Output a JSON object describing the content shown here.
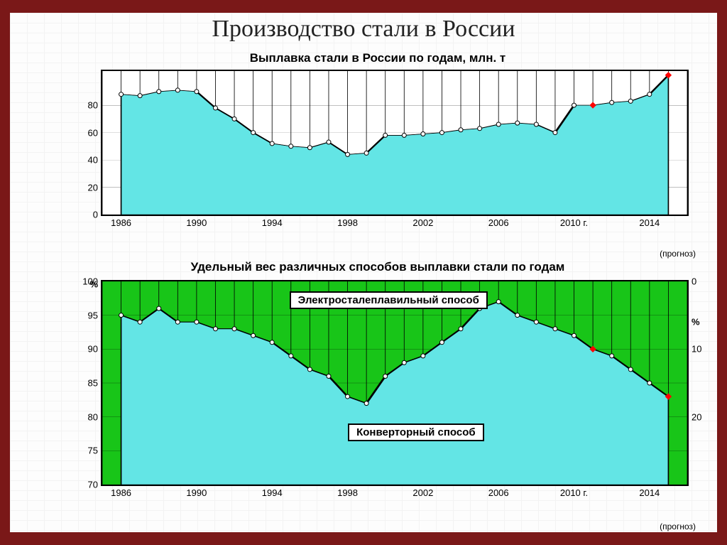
{
  "slide_title": "Производство стали в России",
  "forecast_note": "(прогноз)",
  "chart1": {
    "title": "Выплавка стали в России по годам, млн. т",
    "type": "area",
    "fill_color": "#63e5e5",
    "bg_color": "#ffffff",
    "line_color": "#000000",
    "ymin": 0,
    "ymax": 105,
    "yticks": [
      0,
      20,
      40,
      60,
      80
    ],
    "xmin": 1985,
    "xmax": 2016,
    "xticks": [
      1986,
      1990,
      1994,
      1998,
      2002,
      2006,
      "2010 г.",
      2014
    ],
    "xtick_vals": [
      1986,
      1990,
      1994,
      1998,
      2002,
      2006,
      2010,
      2014
    ],
    "minor_x_every": 1,
    "years": [
      1986,
      1987,
      1988,
      1989,
      1990,
      1991,
      1992,
      1993,
      1994,
      1995,
      1996,
      1997,
      1998,
      1999,
      2000,
      2001,
      2002,
      2003,
      2004,
      2005,
      2006,
      2007,
      2008,
      2009,
      2010,
      2011,
      2012,
      2013,
      2014,
      2015
    ],
    "values": [
      88,
      87,
      90,
      91,
      90,
      78,
      70,
      60,
      52,
      50,
      49,
      53,
      44,
      45,
      58,
      58,
      59,
      60,
      62,
      63,
      66,
      67,
      66,
      60,
      80,
      80,
      82,
      83,
      88,
      102
    ],
    "highlight_years": [
      2011,
      2015
    ]
  },
  "chart2": {
    "title": "Удельный вес различных способов выплавки стали по годам",
    "type": "stacked-area",
    "top_fill": "#18c518",
    "bottom_fill": "#63e5e5",
    "line_color": "#000000",
    "ymin": 70,
    "ymax": 100,
    "yticks": [
      70,
      75,
      80,
      85,
      90,
      95,
      100
    ],
    "left_unit": "%",
    "right_unit": "%",
    "xmin": 1985,
    "xmax": 2016,
    "right_ticks": [
      0,
      10,
      20
    ],
    "right_tick_vals": [
      100,
      90,
      80
    ],
    "xticks": [
      1986,
      1990,
      1994,
      1998,
      2002,
      2006,
      "2010 г.",
      2014
    ],
    "xtick_vals": [
      1986,
      1990,
      1994,
      1998,
      2002,
      2006,
      2010,
      2014
    ],
    "minor_x_every": 1,
    "years": [
      1986,
      1987,
      1988,
      1989,
      1990,
      1991,
      1992,
      1993,
      1994,
      1995,
      1996,
      1997,
      1998,
      1999,
      2000,
      2001,
      2002,
      2003,
      2004,
      2005,
      2006,
      2007,
      2008,
      2009,
      2010,
      2011,
      2012,
      2013,
      2014,
      2015
    ],
    "converter_pct": [
      95,
      94,
      96,
      94,
      94,
      93,
      93,
      92,
      91,
      89,
      87,
      86,
      83,
      82,
      86,
      88,
      89,
      91,
      93,
      96,
      97,
      95,
      94,
      93,
      92,
      90,
      89,
      87,
      85,
      83
    ],
    "highlight_years": [
      2011,
      2015
    ],
    "label_top": "Электросталеплавильный способ",
    "label_bottom": "Конверторный способ",
    "label_top_pos": {
      "left_pct": 32,
      "top_pct": 5
    },
    "label_bottom_pos": {
      "left_pct": 42,
      "top_pct": 70
    }
  }
}
